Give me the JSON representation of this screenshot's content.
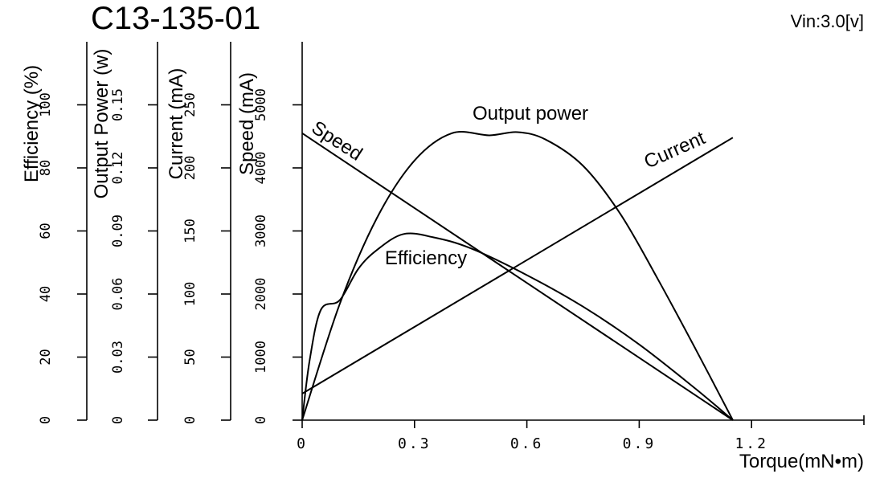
{
  "header": {
    "title": "C13-135-01",
    "vin_label": "Vin:3.0[v]"
  },
  "chart_data": {
    "type": "line",
    "xlabel": "Torque(mN•m)",
    "xlim": [
      0,
      1.5
    ],
    "xticks": [
      "0",
      "0.3",
      "0.6",
      "0.9",
      "1.2"
    ],
    "xtick_values": [
      0,
      0.3,
      0.6,
      0.9,
      1.2
    ],
    "y_axes": [
      {
        "id": "efficiency",
        "label": "Efficiency (%)",
        "range": [
          0,
          120
        ],
        "ticks": [
          "0",
          "20",
          "40",
          "60",
          "80",
          "100"
        ],
        "tick_values": [
          0,
          20,
          40,
          60,
          80,
          100
        ]
      },
      {
        "id": "power",
        "label": "Output Power (w)",
        "range": [
          0,
          0.18
        ],
        "ticks": [
          "0",
          "0.03",
          "0.06",
          "0.09",
          "0.12",
          "0.15"
        ],
        "tick_values": [
          0,
          0.03,
          0.06,
          0.09,
          0.12,
          0.15
        ]
      },
      {
        "id": "current",
        "label": "Current (mA)",
        "range": [
          0,
          300
        ],
        "ticks": [
          "0",
          "50",
          "100",
          "150",
          "200",
          "250"
        ],
        "tick_values": [
          0,
          50,
          100,
          150,
          200,
          250
        ]
      },
      {
        "id": "speed",
        "label": "Speed (mA)",
        "range": [
          0,
          6000
        ],
        "ticks": [
          "0",
          "1000",
          "2000",
          "3000",
          "4000",
          "5000"
        ],
        "tick_values": [
          0,
          1000,
          2000,
          3000,
          4000,
          5000
        ]
      }
    ],
    "series": [
      {
        "name": "Speed",
        "axis": "speed",
        "x": [
          0,
          1.15
        ],
        "y": [
          4550,
          0
        ]
      },
      {
        "name": "Current",
        "axis": "current",
        "x": [
          0,
          1.15
        ],
        "y": [
          21,
          224
        ]
      },
      {
        "name": "Output power",
        "axis": "power",
        "x": [
          0,
          0.1,
          0.2,
          0.3,
          0.4,
          0.5,
          0.575,
          0.65,
          0.75,
          0.85,
          0.95,
          1.05,
          1.15
        ],
        "y": [
          0,
          0.0551,
          0.0963,
          0.1235,
          0.1365,
          0.1355,
          0.137,
          0.1335,
          0.121,
          0.098,
          0.067,
          0.034,
          0
        ]
      },
      {
        "name": "Efficiency",
        "axis": "efficiency",
        "x": [
          0,
          0.02,
          0.05,
          0.1,
          0.15,
          0.2,
          0.27,
          0.35,
          0.45,
          0.6,
          0.75,
          0.9,
          1.05,
          1.15
        ],
        "y": [
          0,
          19,
          35,
          38,
          48,
          54,
          59,
          58,
          54.5,
          46,
          36,
          24,
          10,
          0
        ]
      }
    ],
    "curve_labels": [
      "Speed",
      "Current",
      "Output power",
      "Efficiency"
    ]
  }
}
